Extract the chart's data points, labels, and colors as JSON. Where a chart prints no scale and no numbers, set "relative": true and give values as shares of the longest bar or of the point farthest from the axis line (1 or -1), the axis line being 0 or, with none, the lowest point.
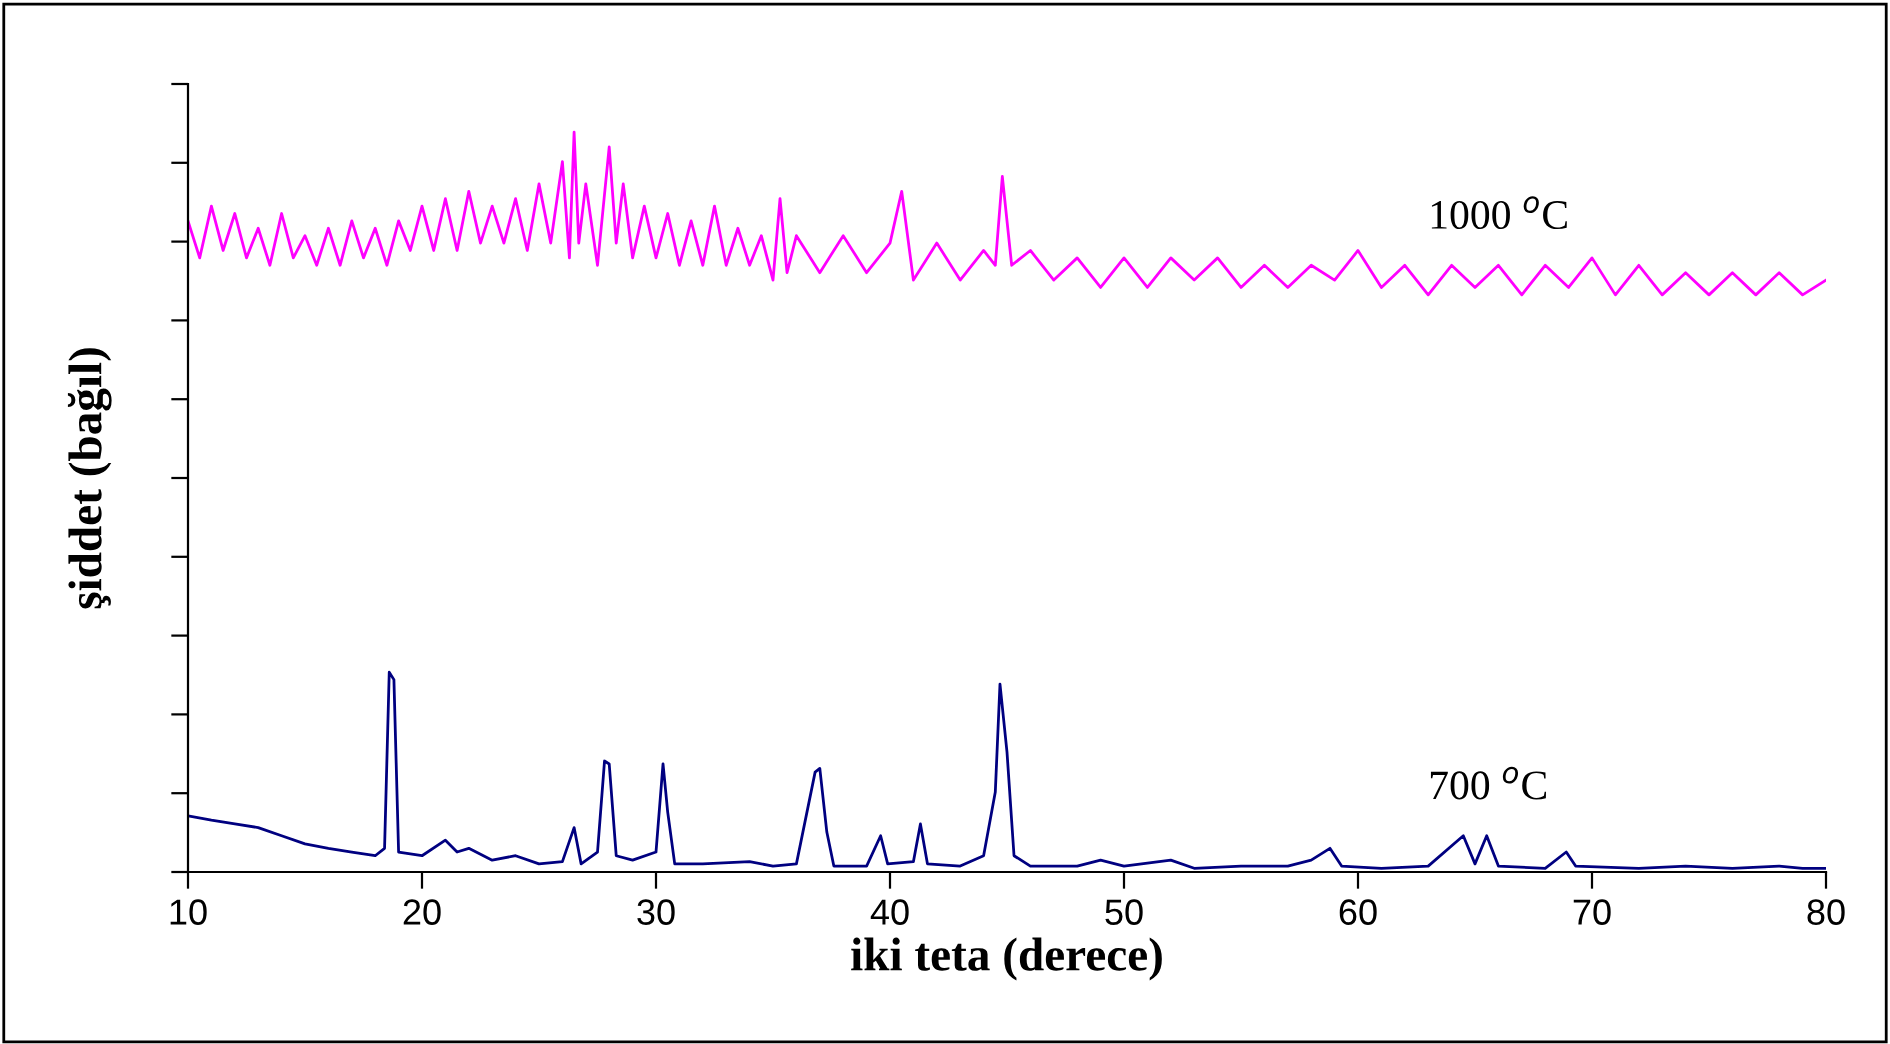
{
  "chart_data": {
    "type": "line",
    "xlabel": "iki teta (derece)",
    "ylabel": "şiddet (bağıl)",
    "relative": true,
    "xlim": [
      10,
      80
    ],
    "xticks": [
      10,
      20,
      30,
      40,
      50,
      60,
      70,
      80
    ],
    "grid": false,
    "legend": false,
    "marker": "none",
    "line_style": "solid",
    "series": [
      {
        "name": "1000 $^{o}$C",
        "color": "#ff00ff",
        "x": [
          10,
          10.5,
          11,
          11.5,
          12,
          12.5,
          13,
          13.5,
          14,
          14.5,
          15,
          15.5,
          16,
          16.5,
          17,
          17.5,
          18,
          18.5,
          19,
          19.5,
          20,
          20.5,
          21,
          21.5,
          22,
          22.5,
          23,
          23.5,
          24,
          24.5,
          25,
          25.5,
          26,
          26.3,
          26.5,
          26.7,
          27,
          27.5,
          28,
          28.3,
          28.6,
          29,
          29.5,
          30,
          30.5,
          31,
          31.5,
          32,
          32.5,
          33,
          33.5,
          34,
          34.5,
          35,
          35.3,
          35.6,
          36,
          37,
          38,
          39,
          40,
          40.5,
          41,
          42,
          43,
          44,
          44.5,
          44.8,
          45.2,
          46,
          47,
          48,
          49,
          50,
          51,
          52,
          53,
          54,
          55,
          56,
          57,
          58,
          59,
          60,
          61,
          62,
          63,
          64,
          65,
          66,
          67,
          68,
          69,
          70,
          71,
          72,
          73,
          74,
          75,
          76,
          77,
          78,
          79,
          80
        ],
        "values": [
          0.88,
          0.83,
          0.9,
          0.84,
          0.89,
          0.83,
          0.87,
          0.82,
          0.89,
          0.83,
          0.86,
          0.82,
          0.87,
          0.82,
          0.88,
          0.83,
          0.87,
          0.82,
          0.88,
          0.84,
          0.9,
          0.84,
          0.91,
          0.84,
          0.92,
          0.85,
          0.9,
          0.85,
          0.91,
          0.84,
          0.93,
          0.85,
          0.96,
          0.83,
          1,
          0.85,
          0.93,
          0.82,
          0.98,
          0.85,
          0.93,
          0.83,
          0.9,
          0.83,
          0.89,
          0.82,
          0.88,
          0.82,
          0.9,
          0.82,
          0.87,
          0.82,
          0.86,
          0.8,
          0.91,
          0.81,
          0.86,
          0.81,
          0.86,
          0.81,
          0.85,
          0.92,
          0.8,
          0.85,
          0.8,
          0.84,
          0.82,
          0.94,
          0.82,
          0.84,
          0.8,
          0.83,
          0.79,
          0.83,
          0.79,
          0.83,
          0.8,
          0.83,
          0.79,
          0.82,
          0.79,
          0.82,
          0.8,
          0.84,
          0.79,
          0.82,
          0.78,
          0.82,
          0.79,
          0.82,
          0.78,
          0.82,
          0.79,
          0.83,
          0.78,
          0.82,
          0.78,
          0.81,
          0.78,
          0.81,
          0.78,
          0.81,
          0.78,
          0.8
        ]
      },
      {
        "name": "700 $^{o}$C",
        "color": "#000080",
        "x": [
          10,
          11,
          12,
          13,
          14,
          15,
          16,
          17,
          18,
          18.4,
          18.6,
          18.8,
          19,
          20,
          21,
          21.5,
          22,
          23,
          24,
          25,
          26,
          26.5,
          26.8,
          27.5,
          27.8,
          28,
          28.3,
          29,
          30,
          30.3,
          30.5,
          30.8,
          32,
          34,
          35,
          36,
          36.8,
          37,
          37.3,
          37.6,
          39,
          39.6,
          39.9,
          41,
          41.3,
          41.6,
          43,
          44,
          44.5,
          44.7,
          45,
          45.3,
          46,
          48,
          49,
          50,
          52,
          53,
          55,
          57,
          58,
          58.8,
          59.3,
          61,
          63,
          64.5,
          65,
          65.5,
          66,
          68,
          68.9,
          69.3,
          72,
          74,
          76,
          78,
          79,
          80
        ],
        "values": [
          0.076,
          0.07,
          0.065,
          0.06,
          0.049,
          0.038,
          0.032,
          0.027,
          0.022,
          0.032,
          0.27,
          0.26,
          0.027,
          0.022,
          0.043,
          0.027,
          0.032,
          0.016,
          0.022,
          0.011,
          0.014,
          0.06,
          0.011,
          0.027,
          0.15,
          0.146,
          0.022,
          0.016,
          0.027,
          0.146,
          0.081,
          0.011,
          0.011,
          0.014,
          0.008,
          0.011,
          0.135,
          0.14,
          0.054,
          0.008,
          0.008,
          0.049,
          0.011,
          0.014,
          0.065,
          0.011,
          0.008,
          0.022,
          0.108,
          0.254,
          0.162,
          0.022,
          0.008,
          0.008,
          0.016,
          0.008,
          0.016,
          0.005,
          0.008,
          0.008,
          0.016,
          0.032,
          0.008,
          0.005,
          0.008,
          0.049,
          0.011,
          0.049,
          0.008,
          0.005,
          0.027,
          0.008,
          0.005,
          0.008,
          0.005,
          0.008,
          0.005,
          0.005
        ]
      }
    ]
  }
}
